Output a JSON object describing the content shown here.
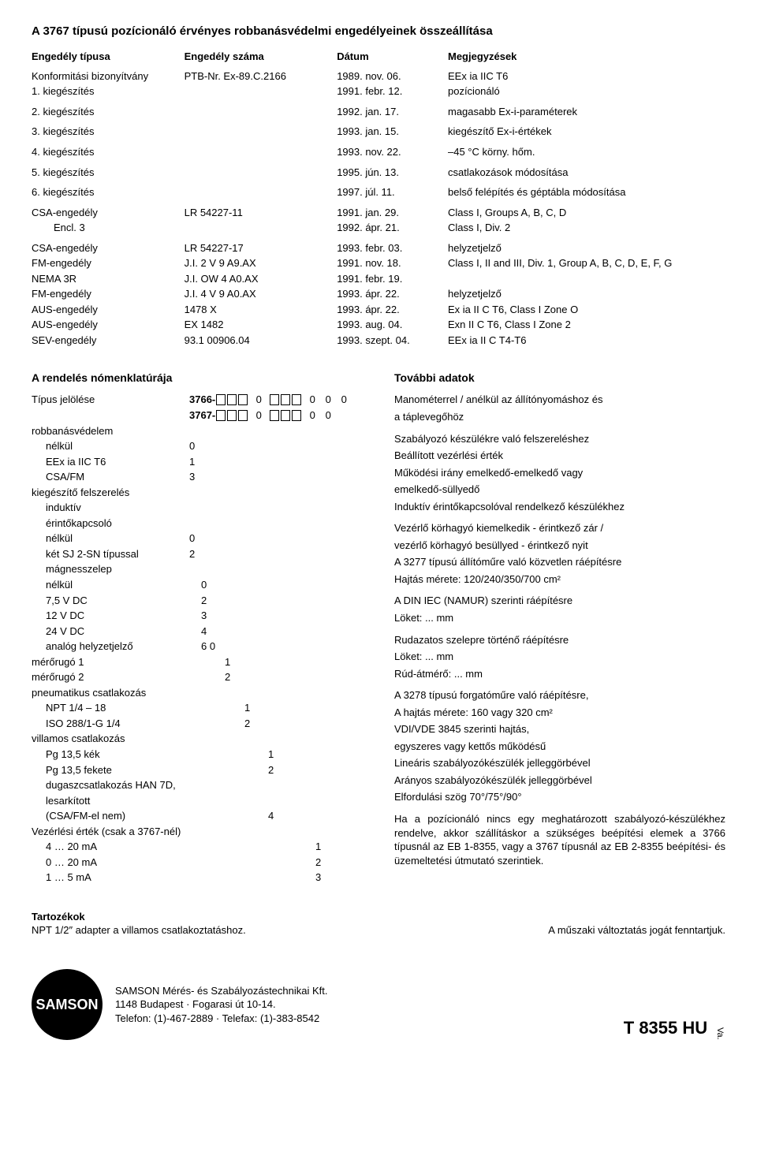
{
  "title": "A 3767 típusú pozícionáló érvényes robbanásvédelmi engedélyeinek összeállítása",
  "table": {
    "headers": [
      "Engedély típusa",
      "Engedély száma",
      "Dátum",
      "Megjegyzések"
    ],
    "rows": [
      [
        "Konformitási bizonyítvány",
        "PTB-Nr. Ex-89.C.2166",
        "1989. nov. 06.",
        "EEx ia IIC T6"
      ],
      [
        "1. kiegészítés",
        "",
        "1991. febr. 12.",
        "pozícionáló"
      ],
      [
        "2. kiegészítés",
        "",
        "1992. jan. 17.",
        "magasabb Ex-i-paraméterek"
      ],
      [
        "3. kiegészítés",
        "",
        "1993. jan. 15.",
        "kiegészítő Ex-i-értékek"
      ],
      [
        "4. kiegészítés",
        "",
        "1993. nov. 22.",
        "–45 °C körny. hőm."
      ],
      [
        "5. kiegészítés",
        "",
        "1995. jún. 13.",
        "csatlakozások módosítása"
      ],
      [
        "6. kiegészítés",
        "",
        "1997. júl. 11.",
        "belső felépítés és géptábla módosítása"
      ],
      [
        "CSA-engedély",
        "LR 54227-11",
        "1991. jan. 29.",
        "Class I, Groups A, B, C, D"
      ],
      [
        "    Encl. 3",
        "",
        "1992. ápr. 21.",
        "Class I, Div. 2"
      ],
      [
        "CSA-engedély",
        "LR 54227-17",
        "1993. febr. 03.",
        "helyzetjelző"
      ],
      [
        "FM-engedély",
        "J.I. 2 V 9 A9.AX",
        "1991. nov. 18.",
        "Class I, II and III,  Div. 1, Group A, B, C, D, E, F, G"
      ],
      [
        "NEMA 3R",
        "J.I. OW 4 A0.AX",
        "1991. febr. 19.",
        ""
      ],
      [
        "FM-engedély",
        "J.I. 4 V 9 A0.AX",
        "1993. ápr. 22.",
        "helyzetjelző"
      ],
      [
        "AUS-engedély",
        "1478 X",
        "1993. ápr. 22.",
        "Ex ia II C T6,  Class I Zone O"
      ],
      [
        "AUS-engedély",
        "EX 1482",
        "1993. aug. 04.",
        "Exn II C T6,  Class I Zone 2"
      ],
      [
        "SEV-engedély",
        "93.1 00906.04",
        "1993. szept. 04.",
        "EEx ia II C T4-T6"
      ]
    ]
  },
  "nom": {
    "title": "A rendelés nómenklatúrája",
    "type_label": "Típus jelölése",
    "type_codes": [
      "3766-",
      "3767-"
    ],
    "type_tail1": "0               0   0   0",
    "type_tail2": "0               0   0",
    "groups": [
      {
        "label": "robbanásvédelem",
        "indent": 0,
        "items": [
          {
            "t": "nélkül",
            "v": "0"
          },
          {
            "t": "EEx ia IIC T6",
            "v": "1"
          },
          {
            "t": "CSA/FM",
            "v": "3"
          }
        ]
      },
      {
        "label": "kiegészítő felszerelés",
        "indent": 0,
        "items": []
      },
      {
        "label": "induktív",
        "indent": 1,
        "items": []
      },
      {
        "label": "érintőkapcsoló",
        "indent": 1,
        "items": [
          {
            "t": "nélkül",
            "v": "0"
          },
          {
            "t": "két SJ 2-SN típussal",
            "v": "2"
          }
        ]
      },
      {
        "label": "mágnesszelep",
        "indent": 1,
        "items": [
          {
            "t": "nélkül",
            "v": "0"
          },
          {
            "t": "7,5 V DC",
            "v": "2"
          },
          {
            "t": "12 V DC",
            "v": "3"
          },
          {
            "t": "24 V DC",
            "v": "4"
          },
          {
            "t": "analóg helyzetjelző",
            "v": "6   0"
          }
        ]
      },
      {
        "label": "mérőrugó 1",
        "indent": 0,
        "v": "1",
        "items": []
      },
      {
        "label": "mérőrugó 2",
        "indent": 0,
        "v": "2",
        "items": []
      },
      {
        "label": "pneumatikus csatlakozás",
        "indent": 0,
        "items": [
          {
            "t": "NPT 1/4 – 18",
            "v": "1"
          },
          {
            "t": "ISO 288/1-G 1/4",
            "v": "2"
          }
        ]
      },
      {
        "label": "villamos csatlakozás",
        "indent": 0,
        "items": [
          {
            "t": "Pg 13,5 kék",
            "v": "1"
          },
          {
            "t": "Pg 13,5 fekete",
            "v": "2"
          },
          {
            "t": "dugaszcsatlakozás HAN 7D,",
            "v": ""
          },
          {
            "t": "lesarkított",
            "v": ""
          },
          {
            "t": "(CSA/FM-el nem)",
            "v": "4"
          }
        ]
      },
      {
        "label": "Vezérlési érték (csak a 3767-nél)",
        "indent": 0,
        "items": [
          {
            "t": "4 … 20 mA",
            "v": "1"
          },
          {
            "t": "0 … 20 mA",
            "v": "2"
          },
          {
            "t": "1 …   5 mA",
            "v": "3"
          }
        ]
      }
    ]
  },
  "further": {
    "title": "További adatok",
    "blocks": [
      [
        "Manométerrel / anélkül az állítónyomáshoz és",
        "a táplevegőhöz"
      ],
      [
        "Szabályozó készülékre való felszereléshez",
        "Beállított vezérlési érték",
        "Működési irány emelkedő-emelkedő vagy",
        "emelkedő-süllyedő",
        "Induktív érintőkapcsolóval rendelkező készülékhez"
      ],
      [
        "Vezérlő körhagyó kiemelkedik - érintkező zár /",
        "vezérlő körhagyó besüllyed - érintkező nyit",
        "A 3277 típusú állítóműre való közvetlen ráépítésre",
        "Hajtás mérete: 120/240/350/700 cm²"
      ],
      [
        "A DIN IEC (NAMUR) szerinti ráépítésre",
        "Löket: ... mm"
      ],
      [
        "Rudazatos szelepre történő ráépítésre",
        "Löket: ... mm",
        "Rúd-átmérő: ... mm"
      ],
      [
        "A 3278 típusú forgatóműre való ráépítésre,",
        "A hajtás mérete: 160 vagy 320 cm²",
        "VDI/VDE 3845 szerinti hajtás,",
        "egyszeres vagy kettős működésű",
        "Lineáris szabályozókészülék jelleggörbével",
        "Arányos szabályozókészülék jelleggörbével",
        "Elfordulási szög 70°/75°/90°"
      ],
      [
        "Ha a pozícionáló nincs egy meghatározott szabályozó-készülékhez rendelve, akkor szállításkor a szükséges beépítési elemek a 3766 típusnál az EB 1-8355, vagy a 3767 típusnál az EB 2-8355 beépítési- és üzemeltetési útmutató szerintiek."
      ]
    ]
  },
  "tail": {
    "acc_title": "Tartozékok",
    "acc_line": "NPT 1/2″ adapter a villamos csatlakoztatáshoz.",
    "reserve": "A műszaki változtatás jogát fenntartjuk."
  },
  "footer": {
    "logo": "SAMSON",
    "company1": "SAMSON Mérés- és Szabályozástechnikai Kft.",
    "company2": "1148 Budapest · Fogarasi út 10-14.",
    "company3": "Telefon: (1)-467-2889 · Telefax: (1)-383-8542",
    "docid": "T 8355 HU",
    "va": "Va."
  }
}
